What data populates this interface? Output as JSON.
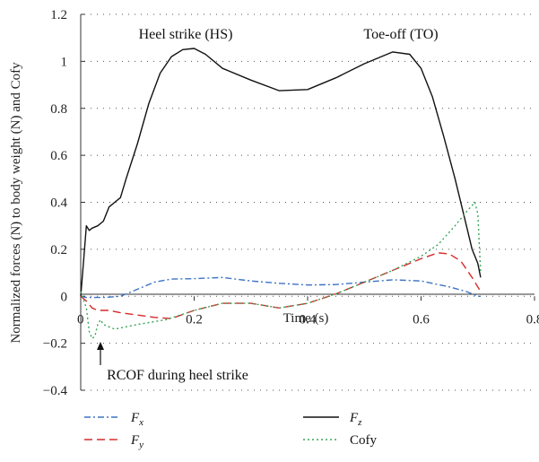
{
  "chart_data": {
    "type": "line",
    "title": "",
    "xlabel": "Time (s)",
    "ylabel": "Normalized forces (N) to body weight (N) and Cofy",
    "xlim": [
      0,
      0.8
    ],
    "ylim": [
      -0.4,
      1.2
    ],
    "x_ticks": [
      "0",
      "0.2",
      "0.4",
      "0.6",
      "0.8"
    ],
    "y_ticks": [
      "−0.4",
      "−0.2",
      "0",
      "0.2",
      "0.4",
      "0.6",
      "0.8",
      "1",
      "1.2"
    ],
    "grid": "horizontal dotted",
    "legend_position": "bottom",
    "annotations": [
      {
        "text": "Heel strike (HS)",
        "x": 0.21,
        "y": 1.12
      },
      {
        "text": "Toe-off (TO)",
        "x": 0.58,
        "y": 1.12
      },
      {
        "text": "RCOF during heel strike",
        "x": 0.1,
        "y": -0.34,
        "arrow_to": [
          0.015,
          -0.19
        ]
      }
    ],
    "series": [
      {
        "name": "Fx",
        "sub": "x",
        "color": "#3d73c4",
        "dash": "7 3 2 3",
        "x": [
          0,
          0.01,
          0.02,
          0.04,
          0.07,
          0.1,
          0.13,
          0.16,
          0.2,
          0.25,
          0.3,
          0.35,
          0.4,
          0.45,
          0.5,
          0.55,
          0.6,
          0.65,
          0.68,
          0.7,
          0.705
        ],
        "y": [
          0,
          -0.005,
          -0.005,
          -0.005,
          0.0,
          0.03,
          0.06,
          0.073,
          0.075,
          0.08,
          0.065,
          0.055,
          0.048,
          0.05,
          0.06,
          0.07,
          0.065,
          0.04,
          0.02,
          0.0,
          0.0
        ]
      },
      {
        "name": "Fy",
        "sub": "y",
        "color": "#d62a2a",
        "dash": "9 5",
        "x": [
          0,
          0.01,
          0.02,
          0.03,
          0.05,
          0.07,
          0.1,
          0.13,
          0.16,
          0.2,
          0.25,
          0.3,
          0.35,
          0.4,
          0.45,
          0.5,
          0.55,
          0.6,
          0.63,
          0.65,
          0.67,
          0.69,
          0.705
        ],
        "y": [
          0,
          -0.02,
          -0.05,
          -0.06,
          -0.06,
          -0.07,
          -0.08,
          -0.09,
          -0.095,
          -0.06,
          -0.03,
          -0.03,
          -0.05,
          -0.03,
          0.01,
          0.06,
          0.11,
          0.16,
          0.185,
          0.18,
          0.15,
          0.08,
          0.02
        ]
      },
      {
        "name": "Fz",
        "sub": "z",
        "color": "#111111",
        "dash": "",
        "x": [
          0,
          0.005,
          0.01,
          0.015,
          0.02,
          0.03,
          0.04,
          0.05,
          0.06,
          0.07,
          0.08,
          0.1,
          0.12,
          0.14,
          0.16,
          0.18,
          0.2,
          0.22,
          0.25,
          0.3,
          0.35,
          0.4,
          0.45,
          0.5,
          0.55,
          0.58,
          0.6,
          0.62,
          0.64,
          0.66,
          0.68,
          0.69,
          0.7,
          0.705
        ],
        "y": [
          0,
          0.15,
          0.3,
          0.28,
          0.29,
          0.3,
          0.32,
          0.38,
          0.4,
          0.42,
          0.5,
          0.65,
          0.82,
          0.95,
          1.02,
          1.05,
          1.055,
          1.03,
          0.97,
          0.92,
          0.875,
          0.88,
          0.93,
          0.99,
          1.04,
          1.03,
          0.97,
          0.85,
          0.68,
          0.5,
          0.3,
          0.2,
          0.14,
          0.08
        ]
      },
      {
        "name": "Cofy",
        "sub": "",
        "color": "#3aa55a",
        "dash": "2 3",
        "x": [
          0,
          0.01,
          0.015,
          0.02,
          0.025,
          0.03,
          0.035,
          0.04,
          0.05,
          0.06,
          0.08,
          0.1,
          0.15,
          0.2,
          0.25,
          0.3,
          0.35,
          0.4,
          0.45,
          0.5,
          0.55,
          0.6,
          0.63,
          0.66,
          0.68,
          0.695,
          0.7,
          0.705
        ],
        "y": [
          0.02,
          -0.05,
          -0.15,
          -0.18,
          -0.17,
          -0.12,
          -0.1,
          -0.12,
          -0.13,
          -0.14,
          -0.13,
          -0.12,
          -0.1,
          -0.06,
          -0.03,
          -0.03,
          -0.05,
          -0.03,
          0.01,
          0.06,
          0.11,
          0.17,
          0.22,
          0.3,
          0.36,
          0.4,
          0.35,
          0.1
        ]
      }
    ]
  }
}
